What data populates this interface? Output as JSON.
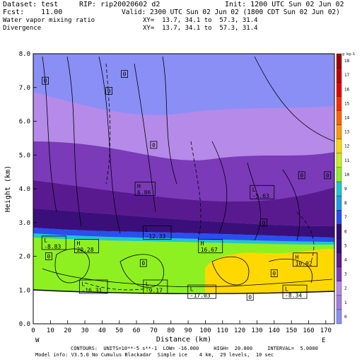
{
  "header": {
    "dataset": "Dataset: test",
    "rip": "RIP: rip20020602 d2",
    "init": "Init: 1200 UTC Sun 02 Jun 02",
    "fcst": "Fcst:    11.00",
    "valid": "Valid: 2300 UTC Sun 02 Jun 02 (1800 CDT Sun 02 Jun 02)",
    "field1": "Water vapor mixing ratio",
    "xy1": "XY=  13.7, 34.1 to  57.3, 31.4",
    "field2": "Divergence",
    "xy2": "XY=  13.7, 34.1 to  57.3, 31.4"
  },
  "footer": {
    "line1": "CONTOURS:  UNITS=10**-5 s**-1  LOW= -16.000     HIGH=  20.000     INTERVAL=  5.0000",
    "line2": "Model info: V3.5.0 No Cumulus Blackadar  Simple ice    4 km,  29 levels,  10 sec"
  },
  "colors": {
    "lavender": "#b7aef0",
    "light_violet": "#a27de0",
    "violet": "#7b3ab8",
    "dark_violet": "#5a1a8f",
    "indigo": "#2e0e73",
    "blue": "#2a4ef0",
    "cyan": "#1fc8c8",
    "green": "#8ef020",
    "yellow": "#ffd800",
    "periwinkle": "#8a8ff6",
    "frame": "#000000"
  },
  "chart_data": {
    "type": "heatmap",
    "title": "Water vapor mixing ratio / Divergence cross section",
    "xlabel": "Distance (km)",
    "ylabel": "Height (km)",
    "xlim": [
      0,
      175
    ],
    "ylim": [
      0,
      8
    ],
    "x_ticks": [
      0,
      10,
      20,
      30,
      40,
      50,
      60,
      70,
      80,
      90,
      100,
      110,
      120,
      130,
      140,
      150,
      160,
      170
    ],
    "y_ticks": [
      "0.0",
      "1.0",
      "2.0",
      "3.0",
      "4.0",
      "5.0",
      "6.0",
      "7.0",
      "8.0"
    ],
    "x_ends": [
      "W",
      "E"
    ],
    "colorbar_unit": "g kg-1",
    "colorbar_ticks": [
      0,
      1,
      2,
      3,
      4,
      5,
      6,
      7,
      8,
      9,
      10,
      11,
      12,
      13,
      14,
      15,
      16,
      17,
      18
    ],
    "colorbar_colors": [
      "#8a8ff6",
      "#a27de0",
      "#b58ae8",
      "#7b3ab8",
      "#5a1a8f",
      "#3a0f7a",
      "#2e0e73",
      "#2a4ef0",
      "#1f9ee8",
      "#1fc8c8",
      "#8ef020",
      "#c8f020",
      "#ffd800",
      "#ff9a00",
      "#ff6400",
      "#ff2a00",
      "#e00000",
      "#c00000",
      "#a00000"
    ],
    "ground": [
      [
        0,
        1.0
      ],
      [
        20,
        0.95
      ],
      [
        50,
        0.85
      ],
      [
        90,
        0.8
      ],
      [
        130,
        0.75
      ],
      [
        175,
        0.7
      ]
    ],
    "labels": [
      {
        "text": "0",
        "x": 53,
        "y": 7.4
      },
      {
        "text": "0",
        "x": 44,
        "y": 6.9
      },
      {
        "text": "0",
        "x": 7,
        "y": 7.2
      },
      {
        "text": "0",
        "x": 70,
        "y": 5.3
      },
      {
        "text": "0",
        "x": 156,
        "y": 4.4
      },
      {
        "text": "0",
        "x": 171,
        "y": 4.4
      },
      {
        "text": "0",
        "x": 134,
        "y": 3.0
      },
      {
        "text": "0",
        "x": 64,
        "y": 1.8
      },
      {
        "text": "0",
        "x": 9,
        "y": 2.0
      },
      {
        "text": "0",
        "x": 140,
        "y": 1.5
      },
      {
        "text": "0",
        "x": 126,
        "y": 0.8
      },
      {
        "text": "H 6.86",
        "x": 65,
        "y": 4.0
      },
      {
        "text": "L -5.63",
        "x": 133,
        "y": 3.9
      },
      {
        "text": "L -12.33",
        "x": 72,
        "y": 2.7
      },
      {
        "text": "L -8.83",
        "x": 12,
        "y": 2.4
      },
      {
        "text": "H 20.28",
        "x": 31,
        "y": 2.3
      },
      {
        "text": "H 16.67",
        "x": 103,
        "y": 2.3
      },
      {
        "text": "H 10.02",
        "x": 158,
        "y": 1.9
      },
      {
        "text": "L -16.31",
        "x": 35,
        "y": 1.1
      },
      {
        "text": "L -9.17",
        "x": 71,
        "y": 1.1
      },
      {
        "text": "L -17.03",
        "x": 98,
        "y": 0.95
      },
      {
        "text": "L -8.34",
        "x": 152,
        "y": 0.95
      }
    ],
    "grid": false
  }
}
